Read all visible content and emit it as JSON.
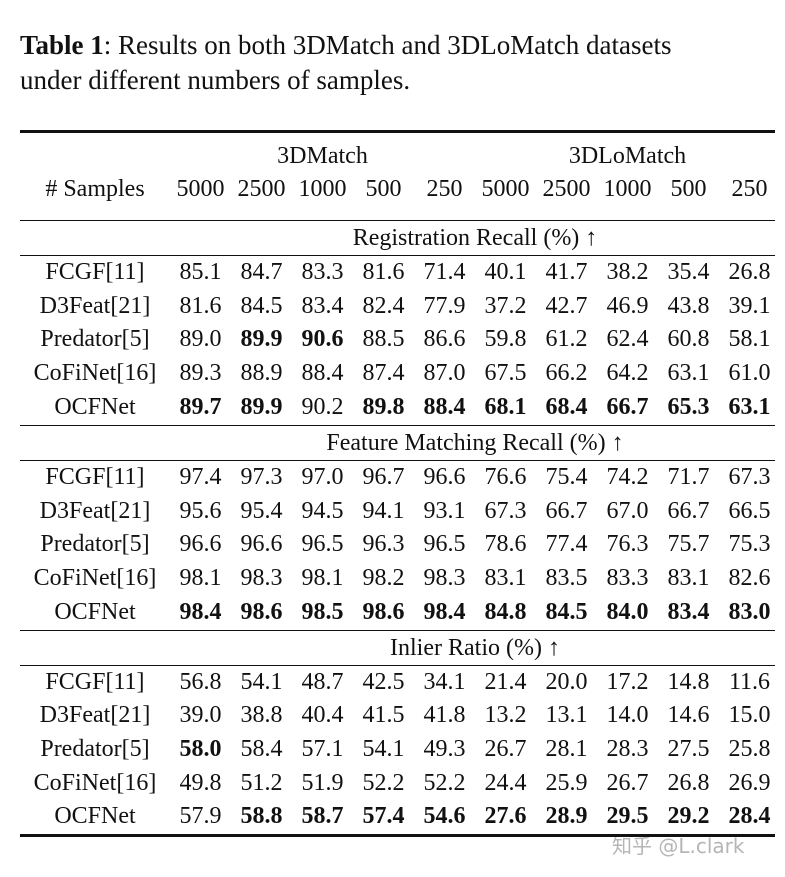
{
  "caption": {
    "label": "Table 1",
    "lines": [
      ": Results on both 3DMatch and 3DLoMatch datasets",
      "under different numbers of samples."
    ]
  },
  "header": {
    "row_label": "# Samples",
    "groups": [
      "3DMatch",
      "3DLoMatch"
    ],
    "samples": [
      "5000",
      "2500",
      "1000",
      "500",
      "250",
      "5000",
      "2500",
      "1000",
      "500",
      "250"
    ]
  },
  "sections": [
    {
      "title": "Registration Recall (%) ↑",
      "rows": [
        {
          "method": "FCGF[11]",
          "values": [
            "85.1",
            "84.7",
            "83.3",
            "81.6",
            "71.4",
            "40.1",
            "41.7",
            "38.2",
            "35.4",
            "26.8"
          ],
          "bold": [
            false,
            false,
            false,
            false,
            false,
            false,
            false,
            false,
            false,
            false
          ]
        },
        {
          "method": "D3Feat[21]",
          "values": [
            "81.6",
            "84.5",
            "83.4",
            "82.4",
            "77.9",
            "37.2",
            "42.7",
            "46.9",
            "43.8",
            "39.1"
          ],
          "bold": [
            false,
            false,
            false,
            false,
            false,
            false,
            false,
            false,
            false,
            false
          ]
        },
        {
          "method": "Predator[5]",
          "values": [
            "89.0",
            "89.9",
            "90.6",
            "88.5",
            "86.6",
            "59.8",
            "61.2",
            "62.4",
            "60.8",
            "58.1"
          ],
          "bold": [
            false,
            true,
            true,
            false,
            false,
            false,
            false,
            false,
            false,
            false
          ]
        },
        {
          "method": "CoFiNet[16]",
          "values": [
            "89.3",
            "88.9",
            "88.4",
            "87.4",
            "87.0",
            "67.5",
            "66.2",
            "64.2",
            "63.1",
            "61.0"
          ],
          "bold": [
            false,
            false,
            false,
            false,
            false,
            false,
            false,
            false,
            false,
            false
          ]
        },
        {
          "method": "OCFNet",
          "values": [
            "89.7",
            "89.9",
            "90.2",
            "89.8",
            "88.4",
            "68.1",
            "68.4",
            "66.7",
            "65.3",
            "63.1"
          ],
          "bold": [
            true,
            true,
            false,
            true,
            true,
            true,
            true,
            true,
            true,
            true
          ]
        }
      ]
    },
    {
      "title": "Feature Matching Recall (%) ↑",
      "rows": [
        {
          "method": "FCGF[11]",
          "values": [
            "97.4",
            "97.3",
            "97.0",
            "96.7",
            "96.6",
            "76.6",
            "75.4",
            "74.2",
            "71.7",
            "67.3"
          ],
          "bold": [
            false,
            false,
            false,
            false,
            false,
            false,
            false,
            false,
            false,
            false
          ]
        },
        {
          "method": "D3Feat[21]",
          "values": [
            "95.6",
            "95.4",
            "94.5",
            "94.1",
            "93.1",
            "67.3",
            "66.7",
            "67.0",
            "66.7",
            "66.5"
          ],
          "bold": [
            false,
            false,
            false,
            false,
            false,
            false,
            false,
            false,
            false,
            false
          ]
        },
        {
          "method": "Predator[5]",
          "values": [
            "96.6",
            "96.6",
            "96.5",
            "96.3",
            "96.5",
            "78.6",
            "77.4",
            "76.3",
            "75.7",
            "75.3"
          ],
          "bold": [
            false,
            false,
            false,
            false,
            false,
            false,
            false,
            false,
            false,
            false
          ]
        },
        {
          "method": "CoFiNet[16]",
          "values": [
            "98.1",
            "98.3",
            "98.1",
            "98.2",
            "98.3",
            "83.1",
            "83.5",
            "83.3",
            "83.1",
            "82.6"
          ],
          "bold": [
            false,
            false,
            false,
            false,
            false,
            false,
            false,
            false,
            false,
            false
          ]
        },
        {
          "method": "OCFNet",
          "values": [
            "98.4",
            "98.6",
            "98.5",
            "98.6",
            "98.4",
            "84.8",
            "84.5",
            "84.0",
            "83.4",
            "83.0"
          ],
          "bold": [
            true,
            true,
            true,
            true,
            true,
            true,
            true,
            true,
            true,
            true
          ]
        }
      ]
    },
    {
      "title": "Inlier Ratio (%) ↑",
      "rows": [
        {
          "method": "FCGF[11]",
          "values": [
            "56.8",
            "54.1",
            "48.7",
            "42.5",
            "34.1",
            "21.4",
            "20.0",
            "17.2",
            "14.8",
            "11.6"
          ],
          "bold": [
            false,
            false,
            false,
            false,
            false,
            false,
            false,
            false,
            false,
            false
          ]
        },
        {
          "method": "D3Feat[21]",
          "values": [
            "39.0",
            "38.8",
            "40.4",
            "41.5",
            "41.8",
            "13.2",
            "13.1",
            "14.0",
            "14.6",
            "15.0"
          ],
          "bold": [
            false,
            false,
            false,
            false,
            false,
            false,
            false,
            false,
            false,
            false
          ]
        },
        {
          "method": "Predator[5]",
          "values": [
            "58.0",
            "58.4",
            "57.1",
            "54.1",
            "49.3",
            "26.7",
            "28.1",
            "28.3",
            "27.5",
            "25.8"
          ],
          "bold": [
            true,
            false,
            false,
            false,
            false,
            false,
            false,
            false,
            false,
            false
          ]
        },
        {
          "method": "CoFiNet[16]",
          "values": [
            "49.8",
            "51.2",
            "51.9",
            "52.2",
            "52.2",
            "24.4",
            "25.9",
            "26.7",
            "26.8",
            "26.9"
          ],
          "bold": [
            false,
            false,
            false,
            false,
            false,
            false,
            false,
            false,
            false,
            false
          ]
        },
        {
          "method": "OCFNet",
          "values": [
            "57.9",
            "58.8",
            "58.7",
            "57.4",
            "54.6",
            "27.6",
            "28.9",
            "29.5",
            "29.2",
            "28.4"
          ],
          "bold": [
            false,
            true,
            true,
            true,
            true,
            true,
            true,
            true,
            true,
            true
          ]
        }
      ]
    }
  ],
  "watermark": "知乎 @L.clark"
}
